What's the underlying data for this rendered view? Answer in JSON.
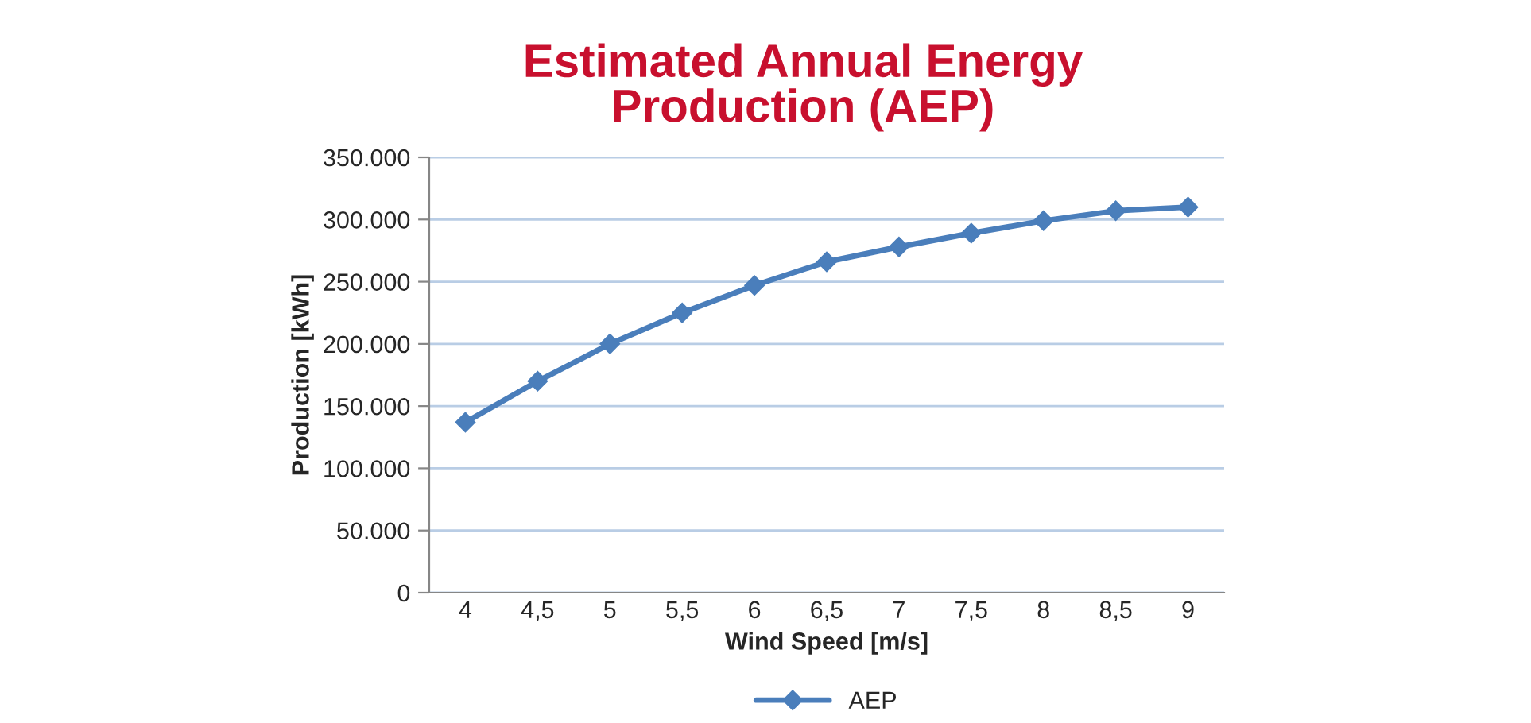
{
  "chart_data": {
    "type": "line",
    "title": "Estimated Annual Energy\nProduction (AEP)",
    "xlabel": "Wind Speed [m/s]",
    "ylabel": "Production [kWh]",
    "categories": [
      "4",
      "4,5",
      "5",
      "5,5",
      "6",
      "6,5",
      "7",
      "7,5",
      "8",
      "8,5",
      "9"
    ],
    "series": [
      {
        "name": "AEP",
        "color": "#4a7ebb",
        "values": [
          137000,
          170000,
          200000,
          225000,
          247000,
          266000,
          278000,
          289000,
          299000,
          307000,
          310000
        ]
      }
    ],
    "ylim": [
      0,
      350000
    ],
    "yticks": [
      {
        "value": 0,
        "label": "0"
      },
      {
        "value": 50000,
        "label": "50.000"
      },
      {
        "value": 100000,
        "label": "100.000"
      },
      {
        "value": 150000,
        "label": "150.000"
      },
      {
        "value": 200000,
        "label": "200.000"
      },
      {
        "value": 250000,
        "label": "250.000"
      },
      {
        "value": 300000,
        "label": "300.000"
      },
      {
        "value": 350000,
        "label": "350.000"
      }
    ],
    "grid": "y",
    "legend": "bottom",
    "marker": "diamond",
    "line_style": "solid"
  }
}
